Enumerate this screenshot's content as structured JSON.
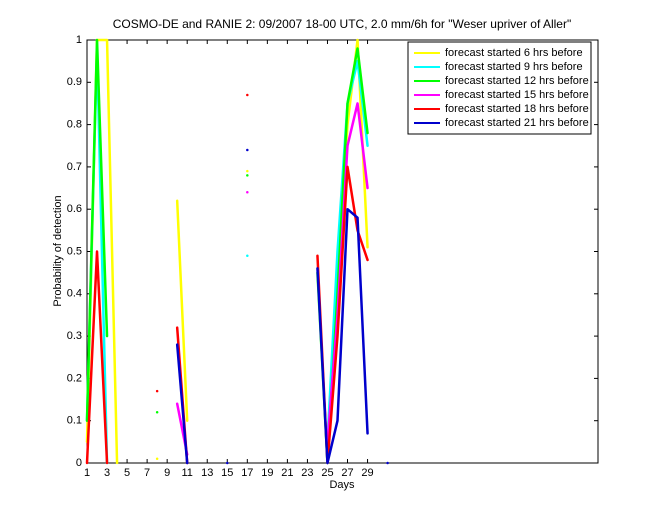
{
  "chart_data": {
    "type": "line",
    "title": "COSMO-DE and RANIE 2: 09/2007 18-00 UTC, 2.0 mm/6h for \"Weser upriver of Aller\"",
    "xlabel": "Days",
    "ylabel": "Probability of detection",
    "x": [
      1,
      2,
      3,
      4,
      5,
      6,
      7,
      8,
      9,
      10,
      11,
      12,
      13,
      14,
      15,
      16,
      17,
      18,
      19,
      20,
      21,
      22,
      23,
      24,
      25,
      26,
      27,
      28,
      29,
      30,
      31
    ],
    "xlim": [
      1,
      52
    ],
    "xticks": [
      1,
      3,
      5,
      7,
      9,
      11,
      13,
      15,
      17,
      19,
      21,
      23,
      25,
      27,
      29
    ],
    "ylim": [
      0,
      1
    ],
    "yticks": [
      0,
      0.1,
      0.2,
      0.3,
      0.4,
      0.5,
      0.6,
      0.7,
      0.8,
      0.9,
      1
    ],
    "grid": false,
    "legend": "upper right",
    "series": [
      {
        "name": "forecast started 6 hrs before",
        "color": "#ffff00",
        "values": [
          0.05,
          1,
          1,
          0,
          null,
          null,
          null,
          0.01,
          null,
          0.62,
          0.1,
          null,
          null,
          null,
          null,
          null,
          0.69,
          null,
          null,
          null,
          null,
          null,
          null,
          null,
          0.05,
          0.45,
          0.8,
          1,
          0.51,
          null,
          null
        ]
      },
      {
        "name": "forecast started 9 hrs before",
        "color": "#00ffff",
        "values": [
          0.1,
          0.98,
          0,
          null,
          null,
          null,
          null,
          null,
          null,
          null,
          null,
          null,
          null,
          null,
          null,
          null,
          0.49,
          null,
          null,
          null,
          null,
          null,
          null,
          null,
          0.05,
          0.5,
          0.85,
          0.95,
          0.75,
          null,
          null
        ]
      },
      {
        "name": "forecast started 12 hrs before",
        "color": "#00ff00",
        "values": [
          0.1,
          1,
          0.3,
          null,
          null,
          null,
          null,
          0.12,
          null,
          null,
          null,
          null,
          null,
          null,
          null,
          null,
          0.68,
          null,
          null,
          null,
          null,
          null,
          null,
          0.45,
          0,
          0.4,
          0.85,
          0.98,
          0.78,
          null,
          null
        ]
      },
      {
        "name": "forecast started 15 hrs before",
        "color": "#ff00ff",
        "values": [
          null,
          null,
          null,
          null,
          null,
          null,
          null,
          null,
          null,
          0.14,
          0.02,
          null,
          null,
          null,
          null,
          null,
          0.64,
          null,
          null,
          null,
          null,
          null,
          null,
          null,
          0.05,
          0.35,
          0.75,
          0.85,
          0.65,
          null,
          null
        ]
      },
      {
        "name": "forecast started 18 hrs before",
        "color": "#ff0000",
        "values": [
          0,
          0.5,
          0,
          null,
          null,
          null,
          null,
          0.17,
          null,
          0.32,
          0,
          null,
          null,
          null,
          null,
          null,
          0.87,
          null,
          null,
          null,
          null,
          null,
          null,
          0.49,
          0,
          0.3,
          0.7,
          0.55,
          0.48,
          null,
          null
        ]
      },
      {
        "name": "forecast started 21 hrs before",
        "color": "#0000cc",
        "values": [
          null,
          null,
          null,
          null,
          null,
          null,
          null,
          null,
          null,
          0.28,
          0,
          null,
          null,
          null,
          0,
          null,
          0.74,
          null,
          null,
          null,
          null,
          null,
          null,
          0.46,
          0,
          0.1,
          0.6,
          0.58,
          0.07,
          null,
          0
        ]
      }
    ]
  }
}
